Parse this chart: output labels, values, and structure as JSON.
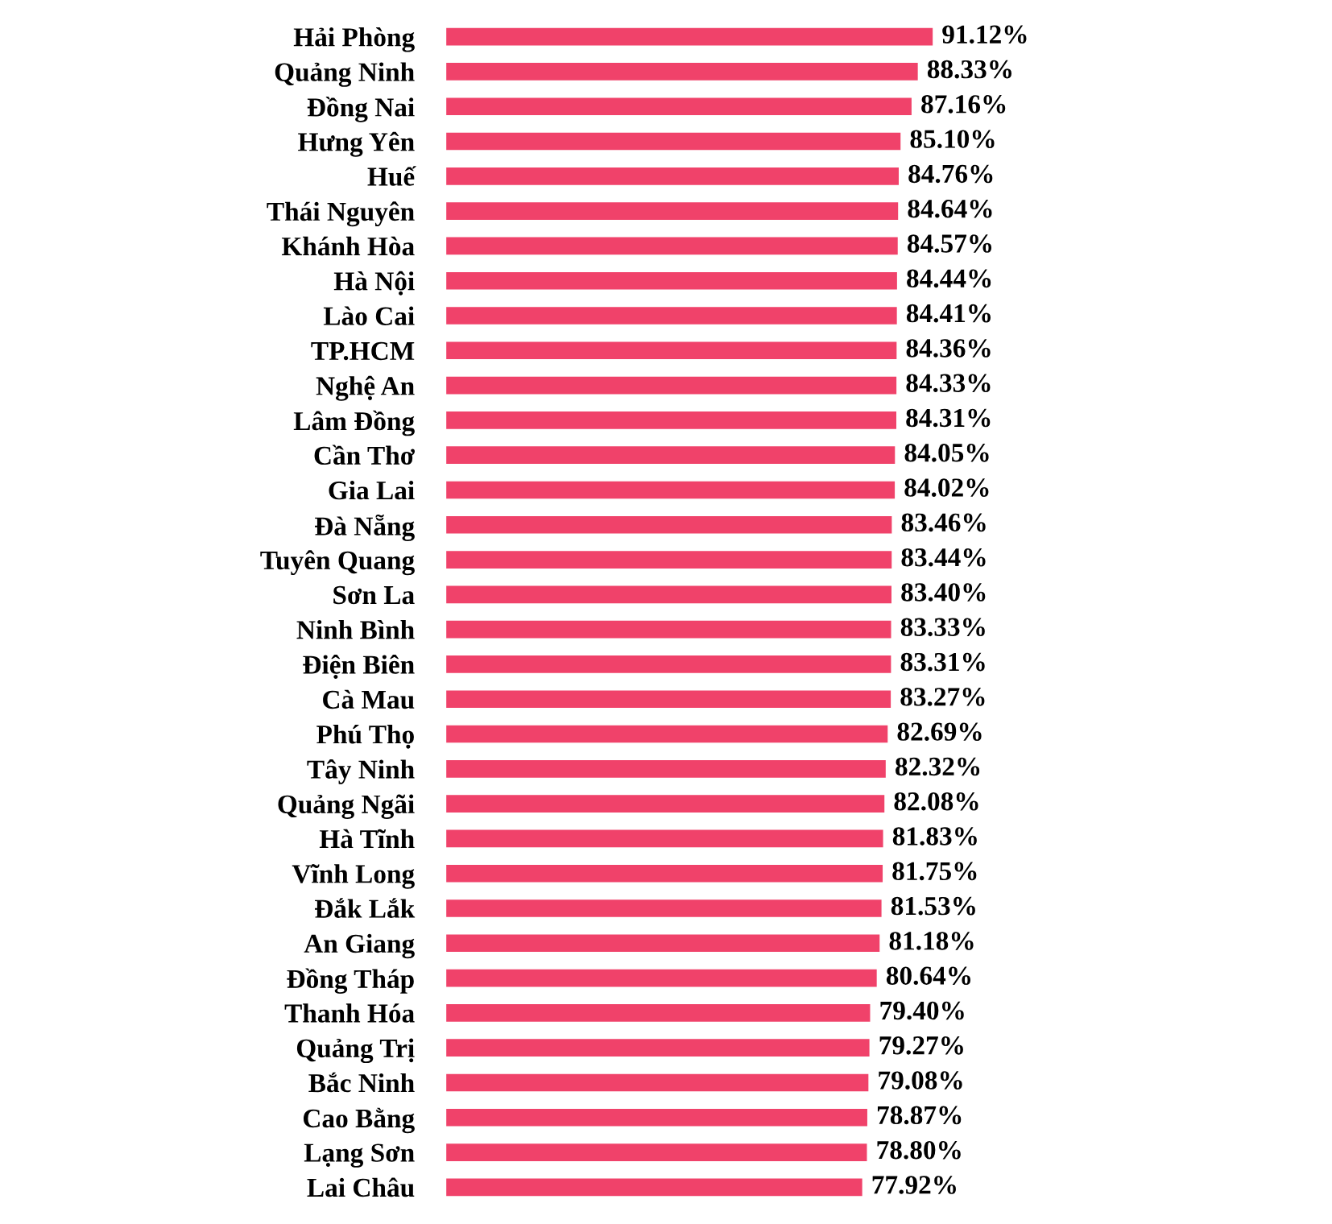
{
  "chart_data": {
    "type": "bar",
    "orientation": "horizontal",
    "data_labels": true,
    "color": "#f0426a",
    "grid": false,
    "legend": false,
    "tick_labels": "y",
    "categories": [
      "Hải Phòng",
      "Quảng Ninh",
      "Đồng Nai",
      "Hưng Yên",
      "Huế",
      "Thái Nguyên",
      "Khánh Hòa",
      "Hà Nội",
      "Lào Cai",
      "TP.HCM",
      "Nghệ An",
      "Lâm Đồng",
      "Cần Thơ",
      "Gia Lai",
      "Đà Nẵng",
      "Tuyên Quang",
      "Sơn La",
      "Ninh Bình",
      "Điện Biên",
      "Cà Mau",
      "Phú Thọ",
      "Tây Ninh",
      "Quảng Ngãi",
      "Hà Tĩnh",
      "Vĩnh Long",
      "Đắk Lắk",
      "An Giang",
      "Đồng Tháp",
      "Thanh Hóa",
      "Quảng Trị",
      "Bắc Ninh",
      "Cao Bằng",
      "Lạng Sơn",
      "Lai Châu"
    ],
    "values": [
      91.12,
      88.33,
      87.16,
      85.1,
      84.76,
      84.64,
      84.57,
      84.44,
      84.41,
      84.36,
      84.33,
      84.31,
      84.05,
      84.02,
      83.46,
      83.44,
      83.4,
      83.33,
      83.31,
      83.27,
      82.69,
      82.32,
      82.08,
      81.83,
      81.75,
      81.53,
      81.18,
      80.64,
      79.4,
      79.27,
      79.08,
      78.87,
      78.8,
      77.92
    ],
    "value_labels": [
      "91.12%",
      "88.33%",
      "87.16%",
      "85.10%",
      "84.76%",
      "84.64%",
      "84.57%",
      "84.44%",
      "84.41%",
      "84.36%",
      "84.33%",
      "84.31%",
      "84.05%",
      "84.02%",
      "83.46%",
      "83.44%",
      "83.40%",
      "83.33%",
      "83.31%",
      "83.27%",
      "82.69%",
      "82.32%",
      "82.08%",
      "81.83%",
      "81.75%",
      "81.53%",
      "81.18%",
      "80.64%",
      "79.40%",
      "79.27%",
      "79.08%",
      "78.87%",
      "78.80%",
      "77.92%"
    ]
  }
}
